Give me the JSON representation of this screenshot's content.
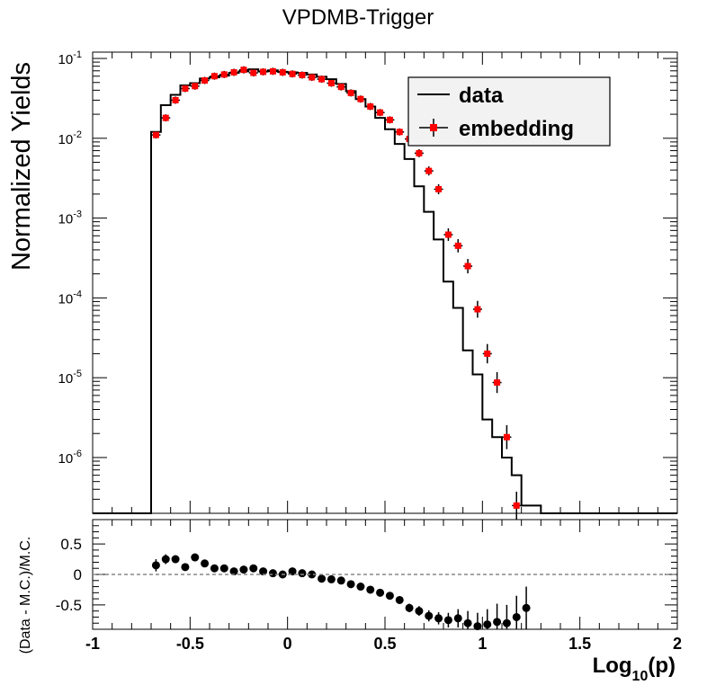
{
  "chart_data": [
    {
      "type": "histogram",
      "title": "VPDMB-Trigger",
      "ylabel": "Normalized Yields",
      "xlabel": "",
      "yscale": "log",
      "xlim": [
        -1,
        2
      ],
      "ylim": [
        2e-07,
        0.12
      ],
      "grid": false,
      "legend_position": "top-right",
      "y_tick_labels": [
        {
          "base": "10",
          "exp": "-1",
          "value": 0.1
        },
        {
          "base": "10",
          "exp": "-2",
          "value": 0.01
        },
        {
          "base": "10",
          "exp": "-3",
          "value": 0.001
        },
        {
          "base": "10",
          "exp": "-4",
          "value": 0.0001
        },
        {
          "base": "10",
          "exp": "-5",
          "value": 1e-05
        },
        {
          "base": "10",
          "exp": "-6",
          "value": 1e-06
        }
      ],
      "series": [
        {
          "name": "data",
          "style": "step",
          "color": "#000000",
          "bin_edges": [
            -0.7,
            -0.65,
            -0.6,
            -0.55,
            -0.5,
            -0.45,
            -0.4,
            -0.35,
            -0.3,
            -0.25,
            -0.2,
            -0.15,
            -0.1,
            -0.05,
            0,
            0.05,
            0.1,
            0.15,
            0.2,
            0.25,
            0.3,
            0.35,
            0.4,
            0.45,
            0.5,
            0.55,
            0.6,
            0.65,
            0.7,
            0.75,
            0.8,
            0.85,
            0.9,
            0.95,
            1,
            1.05,
            1.1,
            1.15,
            1.2,
            1.25,
            1.3
          ],
          "values": [
            0.012,
            0.026,
            0.035,
            0.046,
            0.049,
            0.056,
            0.058,
            0.061,
            0.066,
            0.069,
            0.073,
            0.069,
            0.071,
            0.068,
            0.067,
            0.066,
            0.063,
            0.059,
            0.055,
            0.048,
            0.039,
            0.031,
            0.025,
            0.018,
            0.013,
            0.0085,
            0.0055,
            0.0025,
            0.0012,
            0.00054,
            0.00016,
            7.5e-05,
            2.2e-05,
            1.1e-05,
            3e-06,
            1.8e-06,
            1e-06,
            6e-07,
            2.5e-07,
            2.5e-07
          ]
        },
        {
          "name": "embedding",
          "style": "markers",
          "color": "#ff0000",
          "x": [
            -0.675,
            -0.625,
            -0.575,
            -0.525,
            -0.475,
            -0.425,
            -0.375,
            -0.325,
            -0.275,
            -0.225,
            -0.175,
            -0.125,
            -0.075,
            -0.025,
            0.025,
            0.075,
            0.125,
            0.175,
            0.225,
            0.275,
            0.325,
            0.375,
            0.425,
            0.475,
            0.525,
            0.575,
            0.625,
            0.675,
            0.725,
            0.775,
            0.825,
            0.875,
            0.925,
            0.975,
            1.025,
            1.075,
            1.125,
            1.175,
            1.225,
            1.275
          ],
          "y": [
            0.011,
            0.018,
            0.03,
            0.042,
            0.045,
            0.053,
            0.06,
            0.063,
            0.067,
            0.072,
            0.066,
            0.068,
            0.069,
            0.067,
            0.064,
            0.062,
            0.058,
            0.055,
            0.049,
            0.044,
            0.037,
            0.031,
            0.025,
            0.021,
            0.017,
            0.012,
            0.0098,
            0.0065,
            0.0039,
            0.0023,
            0.00062,
            0.00045,
            0.00025,
            7.2e-05,
            2e-05,
            8.7e-06,
            1.8e-06,
            2.5e-07,
            null,
            null
          ]
        }
      ]
    },
    {
      "type": "scatter",
      "title": "",
      "ylabel": "(Data - M.C.)/M.C.",
      "xlabel": "Log10(p)",
      "xlim": [
        -1,
        2
      ],
      "ylim": [
        -0.9,
        0.9
      ],
      "reference_line": {
        "y": 0,
        "style": "dashed"
      },
      "x_tick_labels": [
        "-1",
        "-0.5",
        "0",
        "0.5",
        "1",
        "1.5",
        "2"
      ],
      "y_tick_labels": [
        "0.5",
        "0",
        "-0.5"
      ],
      "xlabel_parts": {
        "main": "Log",
        "sub": "10",
        "tail": "(p)"
      },
      "series": [
        {
          "name": "",
          "color": "#000000",
          "x": [
            -0.675,
            -0.625,
            -0.575,
            -0.525,
            -0.475,
            -0.425,
            -0.375,
            -0.325,
            -0.275,
            -0.225,
            -0.175,
            -0.125,
            -0.075,
            -0.025,
            0.025,
            0.075,
            0.125,
            0.175,
            0.225,
            0.275,
            0.325,
            0.375,
            0.425,
            0.475,
            0.525,
            0.575,
            0.625,
            0.675,
            0.725,
            0.775,
            0.825,
            0.875,
            0.925,
            0.975,
            1.025,
            1.075,
            1.125,
            1.175,
            1.225,
            1.275
          ],
          "y": [
            0.15,
            0.25,
            0.25,
            0.12,
            0.28,
            0.18,
            0.1,
            0.1,
            0.05,
            0.08,
            0.1,
            0.05,
            0.02,
            0.0,
            0.05,
            0.02,
            0.0,
            -0.07,
            -0.08,
            -0.1,
            -0.16,
            -0.2,
            -0.25,
            -0.3,
            -0.35,
            -0.42,
            -0.55,
            -0.6,
            -0.68,
            -0.72,
            -0.75,
            -0.72,
            -0.8,
            -0.85,
            -0.82,
            -0.78,
            -0.8,
            -0.7,
            -0.55,
            null
          ],
          "err": [
            0.1,
            0.08,
            0.06,
            0.05,
            0.04,
            0.04,
            0.04,
            0.03,
            0.03,
            0.03,
            0.03,
            0.03,
            0.03,
            0.03,
            0.03,
            0.03,
            0.03,
            0.03,
            0.03,
            0.04,
            0.04,
            0.04,
            0.05,
            0.05,
            0.05,
            0.06,
            0.07,
            0.08,
            0.09,
            0.1,
            0.12,
            0.15,
            0.2,
            0.22,
            0.25,
            0.3,
            0.3,
            0.35,
            0.35,
            null
          ]
        }
      ]
    }
  ]
}
